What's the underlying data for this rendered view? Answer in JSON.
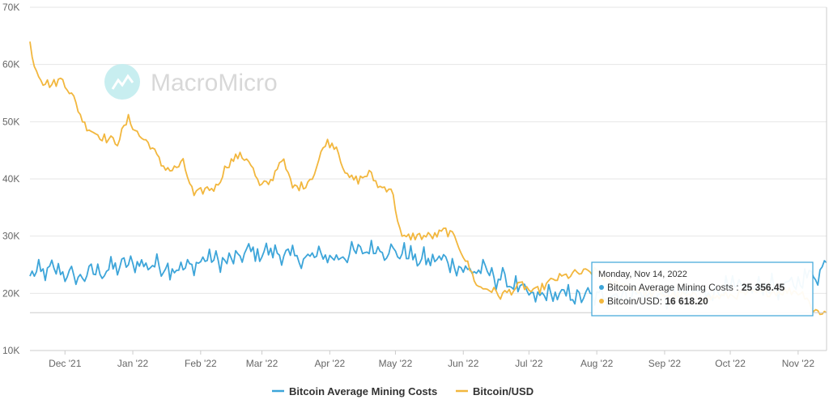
{
  "watermark": {
    "text": "MacroMicro"
  },
  "chart_data": {
    "type": "line",
    "title": "",
    "xlabel": "",
    "ylabel": "",
    "ylim": [
      10000,
      70000
    ],
    "yticks": [
      10000,
      20000,
      30000,
      40000,
      50000,
      60000,
      70000
    ],
    "ytick_labels": [
      "10K",
      "20K",
      "30K",
      "40K",
      "50K",
      "60K",
      "70K"
    ],
    "xlim_days": [
      0,
      364
    ],
    "xticks": [
      {
        "day": 16,
        "label": "Dec '21"
      },
      {
        "day": 47,
        "label": "Jan '22"
      },
      {
        "day": 78,
        "label": "Feb '22"
      },
      {
        "day": 106,
        "label": "Mar '22"
      },
      {
        "day": 137,
        "label": "Apr '22"
      },
      {
        "day": 167,
        "label": "May '22"
      },
      {
        "day": 198,
        "label": "Jun '22"
      },
      {
        "day": 228,
        "label": "Jul '22"
      },
      {
        "day": 259,
        "label": "Aug '22"
      },
      {
        "day": 290,
        "label": "Sep '22"
      },
      {
        "day": 320,
        "label": "Oct '22"
      },
      {
        "day": 351,
        "label": "Nov '22"
      }
    ],
    "x_start_date": "2021-11-15",
    "series": [
      {
        "name": "Bitcoin Average Mining Costs",
        "color": "#3da5d9",
        "x": [
          0,
          10,
          20,
          30,
          40,
          50,
          60,
          70,
          80,
          90,
          100,
          110,
          120,
          130,
          140,
          150,
          160,
          170,
          180,
          190,
          200,
          210,
          220,
          230,
          240,
          250,
          260,
          270,
          280,
          290,
          300,
          310,
          320,
          330,
          340,
          350,
          355,
          360,
          364
        ],
        "values": [
          23000,
          24200,
          22800,
          23500,
          24500,
          25200,
          24800,
          24200,
          25800,
          25600,
          27200,
          27500,
          26200,
          26300,
          26500,
          27000,
          27700,
          26900,
          25800,
          25800,
          24000,
          23600,
          21400,
          19500,
          19400,
          19600,
          19500,
          20000,
          19800,
          19600,
          20200,
          20500,
          20600,
          20800,
          21000,
          21500,
          22800,
          23500,
          25356.45
        ]
      },
      {
        "name": "Bitcoin/USD",
        "color": "#f2b73e",
        "x": [
          0,
          2,
          6,
          10,
          15,
          20,
          25,
          30,
          35,
          40,
          45,
          50,
          55,
          60,
          65,
          70,
          75,
          80,
          85,
          90,
          95,
          100,
          105,
          110,
          115,
          120,
          125,
          130,
          135,
          140,
          145,
          150,
          155,
          160,
          165,
          170,
          175,
          180,
          185,
          190,
          195,
          200,
          205,
          210,
          215,
          220,
          225,
          230,
          240,
          250,
          260,
          265,
          270,
          280,
          290,
          300,
          310,
          320,
          330,
          340,
          350,
          355,
          358,
          360,
          364
        ],
        "values": [
          64000,
          60000,
          57000,
          56500,
          57500,
          54000,
          49500,
          48000,
          47000,
          46500,
          50500,
          47500,
          46000,
          42500,
          41500,
          42800,
          37000,
          38200,
          38500,
          42500,
          44000,
          43500,
          38600,
          39500,
          43800,
          38500,
          38800,
          41000,
          46500,
          45800,
          40200,
          39800,
          41000,
          38500,
          38500,
          29500,
          30000,
          30000,
          30000,
          31000,
          29300,
          25000,
          21000,
          20800,
          19600,
          20500,
          21500,
          20000,
          22500,
          23500,
          23800,
          21500,
          21700,
          20200,
          19800,
          19500,
          19200,
          19600,
          20000,
          20300,
          20400,
          19600,
          16800,
          16900,
          16618.2
        ]
      }
    ],
    "tooltip": {
      "date": "Monday, Nov 14, 2022",
      "day": 364,
      "rows": [
        {
          "label": "Bitcoin Average Mining Costs : ",
          "value": "25 356.45",
          "color": "#3da5d9"
        },
        {
          "label": "Bitcoin/USD: ",
          "value": "16 618.20",
          "color": "#f2b73e"
        }
      ]
    },
    "legend_position": "bottom-center",
    "grid": true
  }
}
